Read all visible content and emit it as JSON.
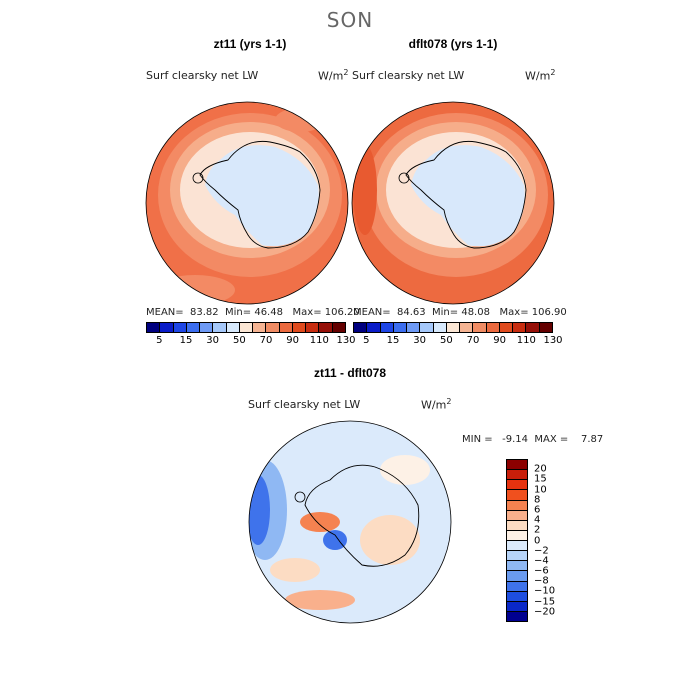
{
  "season": "SON",
  "panels": [
    {
      "title": "zt11 (yrs 1-1)",
      "variable": "Surf clearsky net LW",
      "units_base": "W/m",
      "units_exp": "2",
      "mean_label": "MEAN=",
      "mean": "83.82",
      "min_label": "Min=",
      "min": "46.48",
      "max_label": "Max=",
      "max": "106.20"
    },
    {
      "title": "dflt078 (yrs 1-1)",
      "variable": "Surf clearsky net LW",
      "units_base": "W/m",
      "units_exp": "2",
      "mean_label": "MEAN=",
      "mean": "84.63",
      "min_label": "Min=",
      "min": "48.08",
      "max_label": "Max=",
      "max": "106.90"
    }
  ],
  "abs_colorbar": {
    "colors": [
      "#000080",
      "#0a1cc8",
      "#1e46e6",
      "#3c6ef0",
      "#6e9af5",
      "#a5c8fa",
      "#d7e9fc",
      "#fbe6d4",
      "#f5b493",
      "#f08c64",
      "#eb6a3f",
      "#e04b1e",
      "#c82d10",
      "#961008",
      "#640000"
    ],
    "labels": [
      "5",
      "15",
      "30",
      "50",
      "70",
      "90",
      "110",
      "130"
    ]
  },
  "diff_panel": {
    "title": "zt11 - dflt078",
    "variable": "Surf clearsky net LW",
    "units_base": "W/m",
    "units_exp": "2",
    "stats": "MIN =   -9.14  MAX =    7.87"
  },
  "diff_colorbar": {
    "colors": [
      "#8c0000",
      "#c81e0a",
      "#e6320f",
      "#f0501e",
      "#f58250",
      "#f9b08c",
      "#fcdcc3",
      "#fdf1e6",
      "#dbeafb",
      "#b7d4f8",
      "#8fb8f3",
      "#6a9bef",
      "#3f73eb",
      "#1e4ee0",
      "#0a28c8",
      "#000090"
    ],
    "labels": [
      "20",
      "15",
      "10",
      "8",
      "6",
      "4",
      "2",
      "0",
      "−2",
      "−4",
      "−6",
      "−8",
      "−10",
      "−15",
      "−20"
    ]
  }
}
